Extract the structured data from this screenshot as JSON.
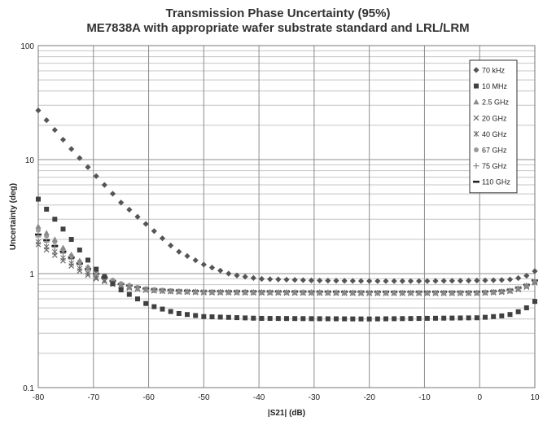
{
  "chart_data": {
    "type": "scatter",
    "title": "Transmission Phase Uncertainty (95%)",
    "subtitle": "ME7838A with appropriate wafer substrate standard and LRL/LRM",
    "xlabel": "|S21| (dB)",
    "ylabel": "Uncertainty (deg)",
    "xlim": [
      -80,
      10
    ],
    "ylim": [
      0.1,
      100
    ],
    "yscale": "log",
    "x_ticks": [
      "-80",
      "-70",
      "-60",
      "-50",
      "-40",
      "-30",
      "-20",
      "-10",
      "0",
      "10"
    ],
    "y_ticks": [
      "0.1",
      "1",
      "10",
      "100"
    ],
    "grid": true,
    "legend_position": "top-right",
    "x_step": 1.5,
    "series": [
      {
        "name": "70 kHz",
        "marker": "diamond",
        "color": "#555555",
        "profile": [
          [
            -80,
            27
          ],
          [
            -75,
            14
          ],
          [
            -70,
            7.6
          ],
          [
            -65,
            4.2
          ],
          [
            -60,
            2.6
          ],
          [
            -55,
            1.6
          ],
          [
            -50,
            1.2
          ],
          [
            -45,
            0.98
          ],
          [
            -40,
            0.9
          ],
          [
            -30,
            0.87
          ],
          [
            -20,
            0.86
          ],
          [
            -10,
            0.86
          ],
          [
            0,
            0.87
          ],
          [
            5,
            0.88
          ],
          [
            8,
            0.93
          ],
          [
            10,
            1.05
          ]
        ]
      },
      {
        "name": "10 MHz",
        "marker": "square",
        "color": "#404040",
        "profile": [
          [
            -80,
            4.5
          ],
          [
            -77,
            3.0
          ],
          [
            -75,
            2.3
          ],
          [
            -72,
            1.5
          ],
          [
            -70,
            1.15
          ],
          [
            -67,
            0.85
          ],
          [
            -65,
            0.72
          ],
          [
            -62,
            0.6
          ],
          [
            -60,
            0.53
          ],
          [
            -55,
            0.45
          ],
          [
            -50,
            0.42
          ],
          [
            -40,
            0.405
          ],
          [
            -20,
            0.4
          ],
          [
            0,
            0.41
          ],
          [
            5,
            0.43
          ],
          [
            8,
            0.48
          ],
          [
            10,
            0.57
          ]
        ]
      },
      {
        "name": "2.5 GHz",
        "marker": "triangle",
        "color": "#8a8a8a",
        "profile": [
          [
            -80,
            2.6
          ],
          [
            -77,
            2.0
          ],
          [
            -75,
            1.6
          ],
          [
            -72,
            1.25
          ],
          [
            -70,
            1.05
          ],
          [
            -67,
            0.87
          ],
          [
            -65,
            0.8
          ],
          [
            -62,
            0.74
          ],
          [
            -60,
            0.72
          ],
          [
            -55,
            0.7
          ],
          [
            -50,
            0.69
          ],
          [
            -20,
            0.68
          ],
          [
            0,
            0.68
          ],
          [
            5,
            0.7
          ],
          [
            8,
            0.76
          ],
          [
            10,
            0.86
          ]
        ]
      },
      {
        "name": "20 GHz",
        "marker": "x",
        "color": "#6a6a6a",
        "profile": [
          [
            -80,
            1.8
          ],
          [
            -77,
            1.45
          ],
          [
            -75,
            1.25
          ],
          [
            -72,
            1.02
          ],
          [
            -70,
            0.92
          ],
          [
            -67,
            0.82
          ],
          [
            -65,
            0.77
          ],
          [
            -62,
            0.73
          ],
          [
            -60,
            0.71
          ],
          [
            -55,
            0.69
          ],
          [
            -50,
            0.68
          ],
          [
            -20,
            0.67
          ],
          [
            0,
            0.67
          ],
          [
            5,
            0.69
          ],
          [
            8,
            0.74
          ],
          [
            10,
            0.83
          ]
        ]
      },
      {
        "name": "40 GHz",
        "marker": "asterisk",
        "color": "#6a6a6a",
        "profile": [
          [
            -80,
            1.9
          ],
          [
            -77,
            1.55
          ],
          [
            -75,
            1.32
          ],
          [
            -72,
            1.07
          ],
          [
            -70,
            0.95
          ],
          [
            -67,
            0.84
          ],
          [
            -65,
            0.78
          ],
          [
            -62,
            0.74
          ],
          [
            -60,
            0.72
          ],
          [
            -55,
            0.7
          ],
          [
            -50,
            0.69
          ],
          [
            -20,
            0.68
          ],
          [
            0,
            0.68
          ],
          [
            5,
            0.7
          ],
          [
            8,
            0.76
          ],
          [
            10,
            0.85
          ]
        ]
      },
      {
        "name": "67 GHz",
        "marker": "circle",
        "color": "#9a9a9a",
        "profile": [
          [
            -80,
            2.4
          ],
          [
            -77,
            1.9
          ],
          [
            -75,
            1.55
          ],
          [
            -72,
            1.22
          ],
          [
            -70,
            1.05
          ],
          [
            -67,
            0.9
          ],
          [
            -65,
            0.82
          ],
          [
            -62,
            0.76
          ],
          [
            -60,
            0.73
          ],
          [
            -55,
            0.7
          ],
          [
            -50,
            0.69
          ],
          [
            -20,
            0.68
          ],
          [
            0,
            0.68
          ],
          [
            5,
            0.7
          ],
          [
            8,
            0.76
          ],
          [
            10,
            0.85
          ]
        ]
      },
      {
        "name": "75 GHz",
        "marker": "plus",
        "color": "#8a8a8a",
        "profile": [
          [
            -80,
            2.1
          ],
          [
            -77,
            1.7
          ],
          [
            -75,
            1.45
          ],
          [
            -72,
            1.15
          ],
          [
            -70,
            1.0
          ],
          [
            -67,
            0.87
          ],
          [
            -65,
            0.8
          ],
          [
            -62,
            0.75
          ],
          [
            -60,
            0.72
          ],
          [
            -55,
            0.7
          ],
          [
            -50,
            0.69
          ],
          [
            -20,
            0.68
          ],
          [
            0,
            0.68
          ],
          [
            5,
            0.7
          ],
          [
            8,
            0.76
          ],
          [
            10,
            0.86
          ]
        ]
      },
      {
        "name": "110 GHz",
        "marker": "dash",
        "color": "#222222",
        "profile": [
          [
            -80,
            2.2
          ],
          [
            -77,
            1.75
          ],
          [
            -75,
            1.5
          ],
          [
            -72,
            1.18
          ],
          [
            -70,
            1.02
          ],
          [
            -67,
            0.88
          ],
          [
            -65,
            0.81
          ],
          [
            -62,
            0.76
          ],
          [
            -60,
            0.73
          ],
          [
            -55,
            0.71
          ],
          [
            -50,
            0.7
          ],
          [
            -20,
            0.69
          ],
          [
            0,
            0.69
          ],
          [
            5,
            0.71
          ],
          [
            8,
            0.77
          ],
          [
            10,
            0.87
          ]
        ]
      }
    ]
  }
}
